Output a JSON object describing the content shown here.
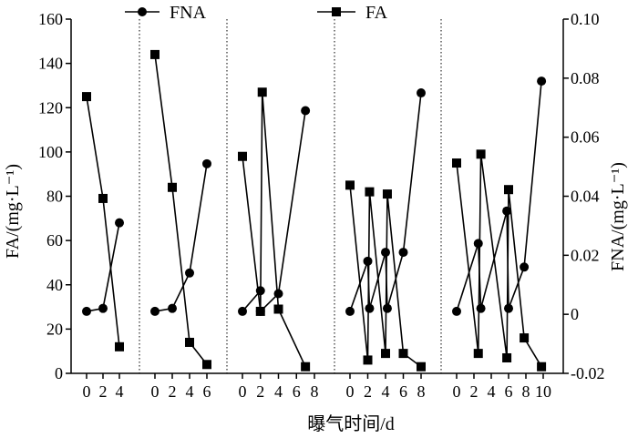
{
  "chart_data": {
    "type": "line",
    "legend": {
      "placement": "top",
      "entries": [
        {
          "label": "FNA",
          "marker": "circle"
        },
        {
          "label": "FA",
          "marker": "square"
        }
      ]
    },
    "xlabel": "曝气时间/d",
    "ylabel_left": "FA/(mg·L⁻¹)",
    "ylabel_right": "FNA/(mg·L⁻¹)",
    "left_axis": {
      "min": 0,
      "max": 160,
      "ticks": [
        "0",
        "20",
        "40",
        "60",
        "80",
        "100",
        "120",
        "140",
        "160"
      ]
    },
    "right_axis": {
      "min": -0.02,
      "max": 0.1,
      "ticks": [
        "-0.02",
        "0",
        "0.02",
        "0.04",
        "0.06",
        "0.08",
        "0.10"
      ]
    },
    "panels": [
      {
        "x_ticks": [
          "0",
          "2",
          "4"
        ],
        "x_tick_values": [
          0,
          2,
          4
        ],
        "FA": {
          "x": [
            0,
            2,
            4
          ],
          "y": [
            125,
            79,
            12
          ]
        },
        "FNA": {
          "x": [
            0,
            2,
            4
          ],
          "y": [
            0.001,
            0.002,
            0.031
          ]
        }
      },
      {
        "x_ticks": [
          "0",
          "2",
          "4",
          "6"
        ],
        "x_tick_values": [
          0,
          2,
          4,
          6
        ],
        "FA": {
          "x": [
            0,
            2,
            4,
            6
          ],
          "y": [
            144,
            84,
            14,
            4
          ]
        },
        "FNA": {
          "x": [
            0,
            2,
            4,
            6
          ],
          "y": [
            0.001,
            0.002,
            0.014,
            0.051
          ]
        }
      },
      {
        "x_ticks": [
          "0",
          "2",
          "4",
          "6",
          "8"
        ],
        "x_tick_values": [
          0,
          2,
          4,
          6,
          8
        ],
        "FA": {
          "x": [
            0,
            2,
            2.2,
            4,
            7
          ],
          "y": [
            98,
            28,
            127,
            29,
            3
          ]
        },
        "FNA": {
          "x": [
            0,
            2,
            2,
            4,
            7
          ],
          "y": [
            0.001,
            0.008,
            0.001,
            0.007,
            0.069
          ]
        }
      },
      {
        "x_ticks": [
          "0",
          "2",
          "4",
          "6",
          "8"
        ],
        "x_tick_values": [
          0,
          2,
          4,
          6,
          8
        ],
        "FA": {
          "x": [
            0,
            2,
            2.2,
            4,
            4.2,
            6,
            8
          ],
          "y": [
            85,
            6,
            82,
            9,
            81,
            9,
            3
          ]
        },
        "FNA": {
          "x": [
            0,
            2,
            2.2,
            4,
            4.2,
            6,
            8
          ],
          "y": [
            0.001,
            0.018,
            0.002,
            0.021,
            0.002,
            0.021,
            0.075
          ]
        }
      },
      {
        "x_ticks": [
          "0",
          "2",
          "4",
          "6",
          "8",
          "10"
        ],
        "x_tick_values": [
          0,
          2,
          4,
          6,
          8,
          10
        ],
        "FA": {
          "x": [
            0,
            2.5,
            2.8,
            5.8,
            6,
            7.8,
            9.8
          ],
          "y": [
            95,
            9,
            99,
            7,
            83,
            16,
            3
          ]
        },
        "FNA": {
          "x": [
            0,
            2.5,
            2.8,
            5.8,
            6,
            7.8,
            9.8
          ],
          "y": [
            0.001,
            0.024,
            0.002,
            0.035,
            0.002,
            0.016,
            0.079
          ]
        }
      }
    ]
  }
}
